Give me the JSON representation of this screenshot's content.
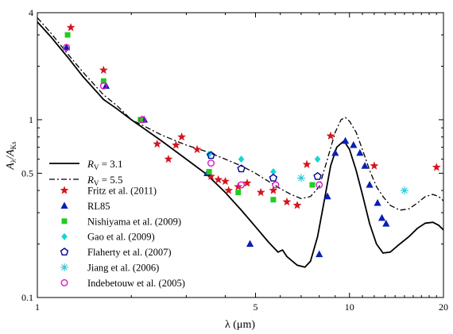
{
  "chart_data": {
    "type": "scatter",
    "xscale": "log",
    "yscale": "log",
    "xlim": [
      1,
      20
    ],
    "ylim": [
      0.1,
      4
    ],
    "grid": false,
    "legend_position": "left",
    "xlabel": "λ (μm)",
    "ylabel": {
      "main": "A",
      "sub1": "λ",
      "slash": "/A",
      "sub2": "Ks"
    },
    "xticks": [
      {
        "value": 1,
        "label": "1"
      },
      {
        "value": 5,
        "label": "5"
      },
      {
        "value": 10,
        "label": "10"
      },
      {
        "value": 20,
        "label": "20"
      }
    ],
    "yticks": [
      {
        "value": 0.1,
        "label": "0.1"
      },
      {
        "value": 0.5,
        "label": "0.5"
      },
      {
        "value": 1,
        "label": "1"
      },
      {
        "value": 4,
        "label": "4"
      }
    ],
    "curves": [
      {
        "name_prefix": "R",
        "name_sub": "V",
        "name_suffix": " = 3.1",
        "style": "solid",
        "color": "#000000",
        "points": [
          [
            1.0,
            3.55
          ],
          [
            1.1,
            2.95
          ],
          [
            1.25,
            2.25
          ],
          [
            1.4,
            1.75
          ],
          [
            1.63,
            1.3
          ],
          [
            1.8,
            1.15
          ],
          [
            2.0,
            1.0
          ],
          [
            2.2,
            0.89
          ],
          [
            2.5,
            0.76
          ],
          [
            3.0,
            0.6
          ],
          [
            3.5,
            0.49
          ],
          [
            4.0,
            0.39
          ],
          [
            4.5,
            0.31
          ],
          [
            5.0,
            0.25
          ],
          [
            5.5,
            0.205
          ],
          [
            5.9,
            0.18
          ],
          [
            6.1,
            0.185
          ],
          [
            6.3,
            0.17
          ],
          [
            6.8,
            0.152
          ],
          [
            7.2,
            0.148
          ],
          [
            7.5,
            0.16
          ],
          [
            7.9,
            0.22
          ],
          [
            8.3,
            0.35
          ],
          [
            8.7,
            0.55
          ],
          [
            9.1,
            0.7
          ],
          [
            9.6,
            0.76
          ],
          [
            10.0,
            0.68
          ],
          [
            10.5,
            0.52
          ],
          [
            11.0,
            0.38
          ],
          [
            11.6,
            0.26
          ],
          [
            12.2,
            0.2
          ],
          [
            12.8,
            0.178
          ],
          [
            13.5,
            0.18
          ],
          [
            14.5,
            0.2
          ],
          [
            15.5,
            0.22
          ],
          [
            16.5,
            0.245
          ],
          [
            17.5,
            0.262
          ],
          [
            18.5,
            0.265
          ],
          [
            19.3,
            0.255
          ],
          [
            20.0,
            0.24
          ]
        ]
      },
      {
        "name_prefix": "R",
        "name_sub": "V",
        "name_suffix": " = 5.5",
        "style": "dashdot",
        "color": "#000000",
        "points": [
          [
            1.0,
            3.75
          ],
          [
            1.1,
            3.1
          ],
          [
            1.25,
            2.35
          ],
          [
            1.4,
            1.85
          ],
          [
            1.63,
            1.38
          ],
          [
            1.8,
            1.2
          ],
          [
            2.0,
            1.0
          ],
          [
            2.2,
            0.92
          ],
          [
            2.5,
            0.82
          ],
          [
            3.0,
            0.72
          ],
          [
            3.5,
            0.66
          ],
          [
            4.0,
            0.6
          ],
          [
            4.5,
            0.55
          ],
          [
            5.0,
            0.5
          ],
          [
            5.5,
            0.45
          ],
          [
            6.0,
            0.41
          ],
          [
            6.5,
            0.38
          ],
          [
            7.0,
            0.36
          ],
          [
            7.5,
            0.37
          ],
          [
            8.0,
            0.42
          ],
          [
            8.5,
            0.6
          ],
          [
            9.0,
            0.85
          ],
          [
            9.4,
            1.0
          ],
          [
            9.7,
            1.03
          ],
          [
            10.0,
            0.98
          ],
          [
            10.5,
            0.85
          ],
          [
            11.0,
            0.68
          ],
          [
            11.6,
            0.52
          ],
          [
            12.2,
            0.42
          ],
          [
            12.8,
            0.37
          ],
          [
            13.5,
            0.33
          ],
          [
            14.5,
            0.31
          ],
          [
            15.5,
            0.315
          ],
          [
            16.5,
            0.34
          ],
          [
            17.5,
            0.37
          ],
          [
            18.5,
            0.38
          ],
          [
            19.3,
            0.37
          ],
          [
            20.0,
            0.35
          ]
        ]
      }
    ],
    "series": [
      {
        "name": "Fritz et al. (2011)",
        "marker": "star",
        "color": "#d4141e",
        "points": [
          [
            1.28,
            3.3
          ],
          [
            1.63,
            1.9
          ],
          [
            2.17,
            1.0
          ],
          [
            2.42,
            0.73
          ],
          [
            2.63,
            0.6
          ],
          [
            2.78,
            0.72
          ],
          [
            2.9,
            0.8
          ],
          [
            3.25,
            0.68
          ],
          [
            3.6,
            0.48
          ],
          [
            3.8,
            0.46
          ],
          [
            4.0,
            0.45
          ],
          [
            4.1,
            0.4
          ],
          [
            4.4,
            0.42
          ],
          [
            4.7,
            0.44
          ],
          [
            5.2,
            0.39
          ],
          [
            5.7,
            0.4
          ],
          [
            6.3,
            0.345
          ],
          [
            6.8,
            0.33
          ],
          [
            7.3,
            0.56
          ],
          [
            8.7,
            0.81
          ],
          [
            12.0,
            0.55
          ],
          [
            19.0,
            0.54
          ]
        ]
      },
      {
        "name": "RL85",
        "marker": "triangle",
        "color": "#0a1fb3",
        "points": [
          [
            1.24,
            2.55
          ],
          [
            1.66,
            1.55
          ],
          [
            2.2,
            1.0
          ],
          [
            3.5,
            0.5
          ],
          [
            4.8,
            0.2
          ],
          [
            8.0,
            0.175
          ],
          [
            8.5,
            0.37
          ],
          [
            9.0,
            0.65
          ],
          [
            9.7,
            0.76
          ],
          [
            10.3,
            0.72
          ],
          [
            10.8,
            0.65
          ],
          [
            11.2,
            0.55
          ],
          [
            11.6,
            0.43
          ],
          [
            12.3,
            0.34
          ],
          [
            12.7,
            0.28
          ],
          [
            13.1,
            0.26
          ]
        ]
      },
      {
        "name": "Nishiyama et al. (2009)",
        "marker": "square",
        "color": "#22cc22",
        "points": [
          [
            1.25,
            3.0
          ],
          [
            1.63,
            1.65
          ],
          [
            2.14,
            1.0
          ],
          [
            3.55,
            0.51
          ],
          [
            4.4,
            0.39
          ],
          [
            5.7,
            0.355
          ],
          [
            7.6,
            0.43
          ]
        ]
      },
      {
        "name": "Gao et al. (2009)",
        "marker": "diamond",
        "color": "#11d6d6",
        "points": [
          [
            3.55,
            0.64
          ],
          [
            4.5,
            0.6
          ],
          [
            5.7,
            0.51
          ],
          [
            7.9,
            0.6
          ]
        ]
      },
      {
        "name": "Flaherty et al. (2007)",
        "marker": "pentagon",
        "color": "#000090",
        "points": [
          [
            3.6,
            0.63
          ],
          [
            4.5,
            0.53
          ],
          [
            5.7,
            0.47
          ],
          [
            7.9,
            0.48
          ]
        ]
      },
      {
        "name": "Jiang et al. (2006)",
        "marker": "asterisk",
        "color": "#22c8d8",
        "points": [
          [
            7.0,
            0.47
          ],
          [
            15.0,
            0.4
          ]
        ]
      },
      {
        "name": "Indebetouw et al. (2005)",
        "marker": "circle",
        "color": "#d81ac0",
        "points": [
          [
            1.24,
            2.55
          ],
          [
            1.63,
            1.55
          ],
          [
            2.17,
            1.0
          ],
          [
            3.6,
            0.57
          ],
          [
            4.5,
            0.43
          ],
          [
            5.8,
            0.43
          ],
          [
            8.0,
            0.43
          ]
        ]
      }
    ]
  }
}
